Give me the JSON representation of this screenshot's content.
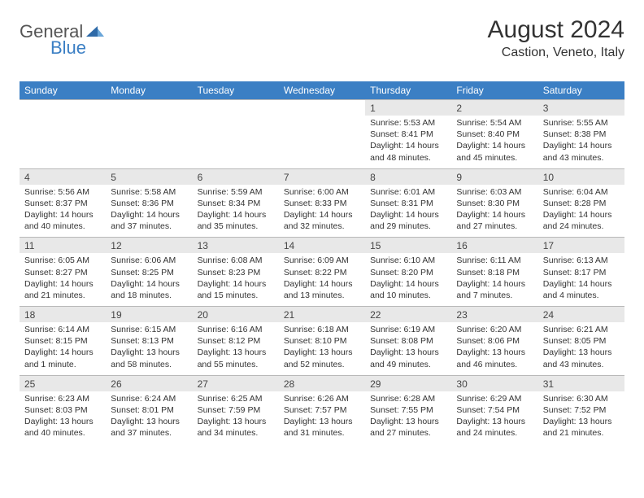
{
  "logo": {
    "general": "General",
    "blue": "Blue"
  },
  "title": "August 2024",
  "location": "Castion, Veneto, Italy",
  "colors": {
    "header_bg": "#3b7fc4",
    "header_text": "#ffffff",
    "daynum_bg": "#e8e8e8",
    "border": "#b8b8b8",
    "text": "#333333"
  },
  "day_headers": [
    "Sunday",
    "Monday",
    "Tuesday",
    "Wednesday",
    "Thursday",
    "Friday",
    "Saturday"
  ],
  "weeks": [
    {
      "nums": [
        "",
        "",
        "",
        "",
        "1",
        "2",
        "3"
      ],
      "details": [
        "",
        "",
        "",
        "",
        "Sunrise: 5:53 AM\nSunset: 8:41 PM\nDaylight: 14 hours and 48 minutes.",
        "Sunrise: 5:54 AM\nSunset: 8:40 PM\nDaylight: 14 hours and 45 minutes.",
        "Sunrise: 5:55 AM\nSunset: 8:38 PM\nDaylight: 14 hours and 43 minutes."
      ]
    },
    {
      "nums": [
        "4",
        "5",
        "6",
        "7",
        "8",
        "9",
        "10"
      ],
      "details": [
        "Sunrise: 5:56 AM\nSunset: 8:37 PM\nDaylight: 14 hours and 40 minutes.",
        "Sunrise: 5:58 AM\nSunset: 8:36 PM\nDaylight: 14 hours and 37 minutes.",
        "Sunrise: 5:59 AM\nSunset: 8:34 PM\nDaylight: 14 hours and 35 minutes.",
        "Sunrise: 6:00 AM\nSunset: 8:33 PM\nDaylight: 14 hours and 32 minutes.",
        "Sunrise: 6:01 AM\nSunset: 8:31 PM\nDaylight: 14 hours and 29 minutes.",
        "Sunrise: 6:03 AM\nSunset: 8:30 PM\nDaylight: 14 hours and 27 minutes.",
        "Sunrise: 6:04 AM\nSunset: 8:28 PM\nDaylight: 14 hours and 24 minutes."
      ]
    },
    {
      "nums": [
        "11",
        "12",
        "13",
        "14",
        "15",
        "16",
        "17"
      ],
      "details": [
        "Sunrise: 6:05 AM\nSunset: 8:27 PM\nDaylight: 14 hours and 21 minutes.",
        "Sunrise: 6:06 AM\nSunset: 8:25 PM\nDaylight: 14 hours and 18 minutes.",
        "Sunrise: 6:08 AM\nSunset: 8:23 PM\nDaylight: 14 hours and 15 minutes.",
        "Sunrise: 6:09 AM\nSunset: 8:22 PM\nDaylight: 14 hours and 13 minutes.",
        "Sunrise: 6:10 AM\nSunset: 8:20 PM\nDaylight: 14 hours and 10 minutes.",
        "Sunrise: 6:11 AM\nSunset: 8:18 PM\nDaylight: 14 hours and 7 minutes.",
        "Sunrise: 6:13 AM\nSunset: 8:17 PM\nDaylight: 14 hours and 4 minutes."
      ]
    },
    {
      "nums": [
        "18",
        "19",
        "20",
        "21",
        "22",
        "23",
        "24"
      ],
      "details": [
        "Sunrise: 6:14 AM\nSunset: 8:15 PM\nDaylight: 14 hours and 1 minute.",
        "Sunrise: 6:15 AM\nSunset: 8:13 PM\nDaylight: 13 hours and 58 minutes.",
        "Sunrise: 6:16 AM\nSunset: 8:12 PM\nDaylight: 13 hours and 55 minutes.",
        "Sunrise: 6:18 AM\nSunset: 8:10 PM\nDaylight: 13 hours and 52 minutes.",
        "Sunrise: 6:19 AM\nSunset: 8:08 PM\nDaylight: 13 hours and 49 minutes.",
        "Sunrise: 6:20 AM\nSunset: 8:06 PM\nDaylight: 13 hours and 46 minutes.",
        "Sunrise: 6:21 AM\nSunset: 8:05 PM\nDaylight: 13 hours and 43 minutes."
      ]
    },
    {
      "nums": [
        "25",
        "26",
        "27",
        "28",
        "29",
        "30",
        "31"
      ],
      "details": [
        "Sunrise: 6:23 AM\nSunset: 8:03 PM\nDaylight: 13 hours and 40 minutes.",
        "Sunrise: 6:24 AM\nSunset: 8:01 PM\nDaylight: 13 hours and 37 minutes.",
        "Sunrise: 6:25 AM\nSunset: 7:59 PM\nDaylight: 13 hours and 34 minutes.",
        "Sunrise: 6:26 AM\nSunset: 7:57 PM\nDaylight: 13 hours and 31 minutes.",
        "Sunrise: 6:28 AM\nSunset: 7:55 PM\nDaylight: 13 hours and 27 minutes.",
        "Sunrise: 6:29 AM\nSunset: 7:54 PM\nDaylight: 13 hours and 24 minutes.",
        "Sunrise: 6:30 AM\nSunset: 7:52 PM\nDaylight: 13 hours and 21 minutes."
      ]
    }
  ]
}
